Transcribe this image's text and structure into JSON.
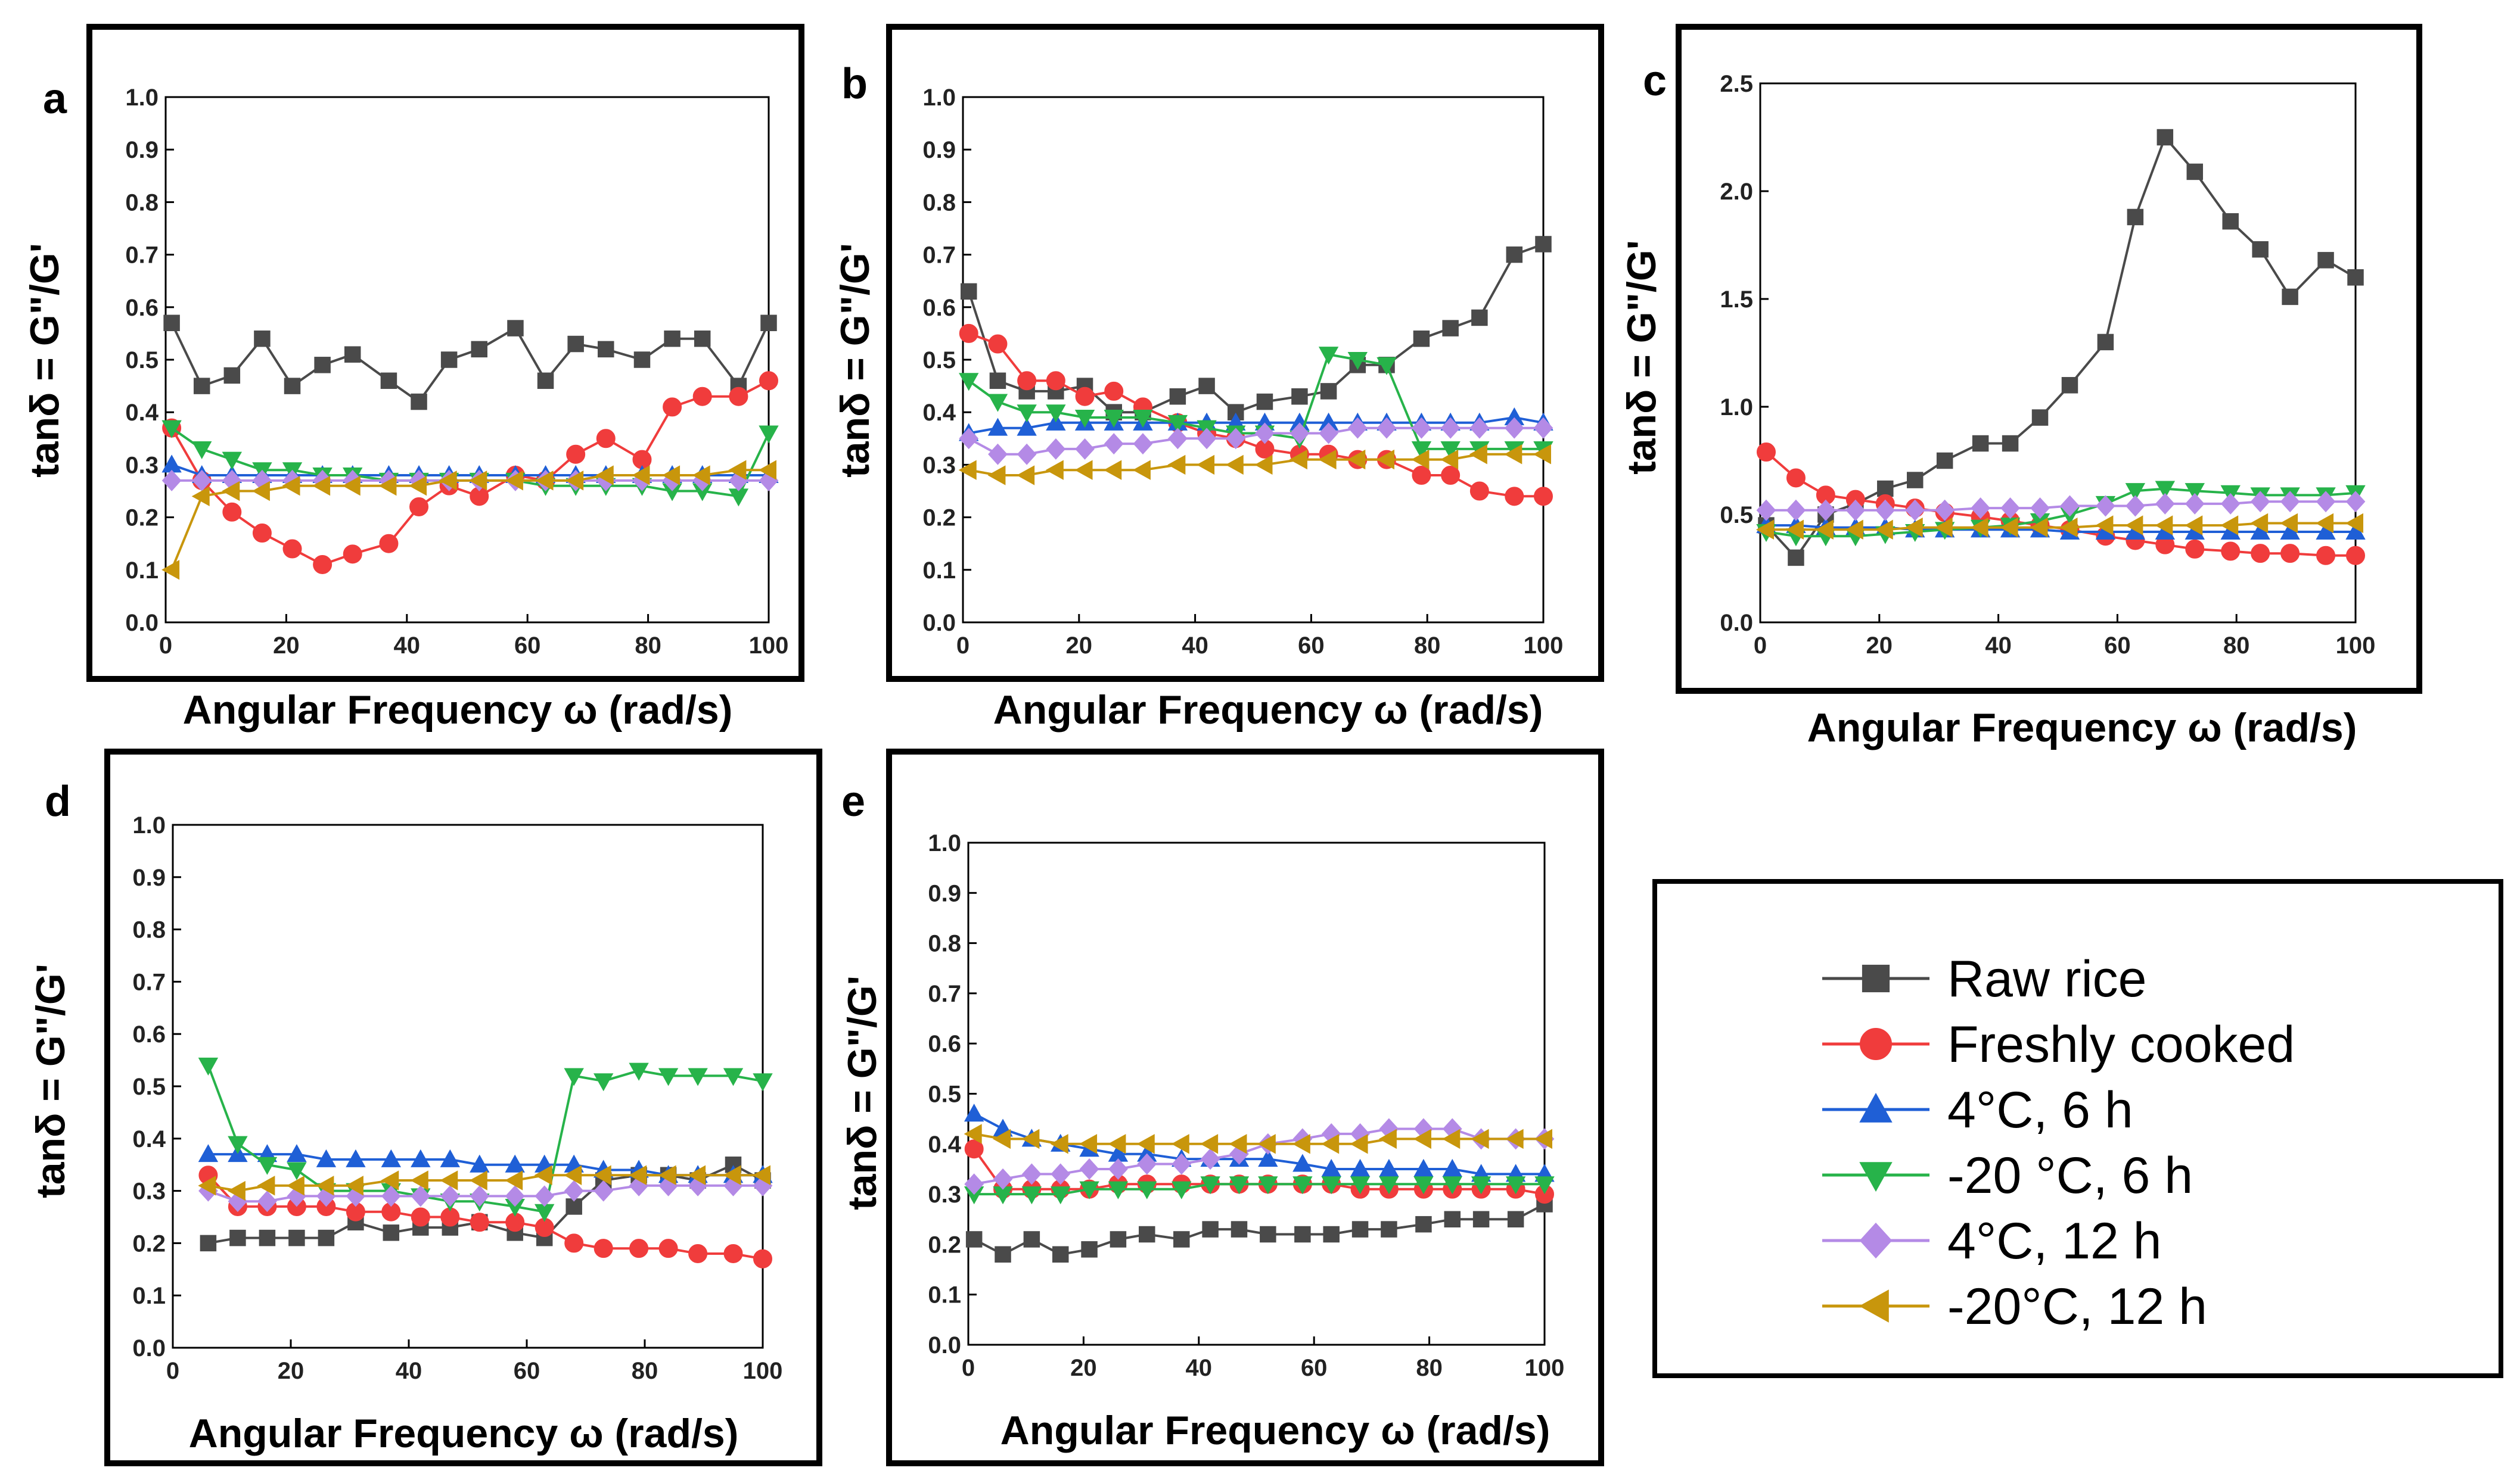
{
  "figure": {
    "legend": [
      {
        "name": "Raw rice",
        "color": "#4a4a4a",
        "marker": "square"
      },
      {
        "name": "Freshly cooked",
        "color": "#f03c3c",
        "marker": "circle"
      },
      {
        "name": "4°C, 6 h",
        "color": "#1f5fd6",
        "marker": "triangle-up"
      },
      {
        "name": "-20 °C, 6 h",
        "color": "#27b34a",
        "marker": "triangle-down"
      },
      {
        "name": "4°C, 12 h",
        "color": "#b48ae6",
        "marker": "diamond"
      },
      {
        "name": "-20°C, 12 h",
        "color": "#c8960c",
        "marker": "triangle-left"
      }
    ]
  },
  "chart_data": [
    {
      "panel": "a",
      "type": "line",
      "xlabel": "Angular Frequency ω (rad/s)",
      "ylabel": "tanδ = G\"/G'",
      "xlim": [
        0,
        100
      ],
      "ylim": [
        0,
        1.0
      ],
      "xticks": [
        0,
        20,
        40,
        60,
        80,
        100
      ],
      "yticks": [
        0.0,
        0.1,
        0.2,
        0.3,
        0.4,
        0.5,
        0.6,
        0.7,
        0.8,
        0.9,
        1.0
      ],
      "ytick_labels": [
        "0.0",
        "0.1",
        "0.2",
        "0.3",
        "0.4",
        "0.5",
        "0.6",
        "0.7",
        "0.8",
        "0.9",
        "1.0"
      ],
      "x": [
        1,
        6,
        11,
        16,
        21,
        26,
        31,
        37,
        42,
        47,
        52,
        58,
        63,
        68,
        73,
        79,
        84,
        89,
        95,
        100
      ],
      "series": [
        {
          "name": "Raw rice",
          "values": [
            0.57,
            0.45,
            0.47,
            0.54,
            0.45,
            0.49,
            0.51,
            0.46,
            0.42,
            0.5,
            0.52,
            0.56,
            0.46,
            0.53,
            0.52,
            0.5,
            0.54,
            0.54,
            0.45,
            0.57
          ]
        },
        {
          "name": "Freshly cooked",
          "values": [
            0.37,
            0.27,
            0.21,
            0.17,
            0.14,
            0.11,
            0.13,
            0.15,
            0.22,
            0.26,
            0.24,
            0.28,
            0.27,
            0.32,
            0.35,
            0.31,
            0.41,
            0.43,
            0.43,
            0.46
          ]
        },
        {
          "name": "4°C, 6 h",
          "values": [
            0.3,
            0.28,
            0.28,
            0.28,
            0.28,
            0.28,
            0.28,
            0.28,
            0.28,
            0.28,
            0.28,
            0.28,
            0.28,
            0.28,
            0.28,
            0.28,
            0.28,
            0.28,
            0.28,
            0.28
          ]
        },
        {
          "name": "-20 °C, 6 h",
          "values": [
            0.37,
            0.33,
            0.31,
            0.29,
            0.29,
            0.28,
            0.28,
            0.27,
            0.27,
            0.27,
            0.27,
            0.27,
            0.26,
            0.26,
            0.26,
            0.26,
            0.25,
            0.25,
            0.24,
            0.36
          ]
        },
        {
          "name": "4°C, 12 h",
          "values": [
            0.27,
            0.27,
            0.27,
            0.27,
            0.27,
            0.27,
            0.27,
            0.27,
            0.27,
            0.27,
            0.27,
            0.27,
            0.27,
            0.27,
            0.27,
            0.27,
            0.27,
            0.27,
            0.27,
            0.27
          ]
        },
        {
          "name": "-20°C, 12 h",
          "values": [
            0.1,
            0.24,
            0.25,
            0.25,
            0.26,
            0.26,
            0.26,
            0.26,
            0.26,
            0.27,
            0.27,
            0.27,
            0.27,
            0.27,
            0.28,
            0.28,
            0.28,
            0.28,
            0.29,
            0.29
          ]
        }
      ]
    },
    {
      "panel": "b",
      "type": "line",
      "xlabel": "Angular Frequency ω (rad/s)",
      "ylabel": "tanδ = G\"/G'",
      "xlim": [
        0,
        100
      ],
      "ylim": [
        0,
        1.0
      ],
      "xticks": [
        0,
        20,
        40,
        60,
        80,
        100
      ],
      "yticks": [
        0.0,
        0.1,
        0.2,
        0.3,
        0.4,
        0.5,
        0.6,
        0.7,
        0.8,
        0.9,
        1.0
      ],
      "ytick_labels": [
        "0.0",
        "0.1",
        "0.2",
        "0.3",
        "0.4",
        "0.5",
        "0.6",
        "0.7",
        "0.8",
        "0.9",
        "1.0"
      ],
      "x": [
        1,
        6,
        11,
        16,
        21,
        26,
        31,
        37,
        42,
        47,
        52,
        58,
        63,
        68,
        73,
        79,
        84,
        89,
        95,
        100
      ],
      "series": [
        {
          "name": "Raw rice",
          "values": [
            0.63,
            0.46,
            0.44,
            0.44,
            0.45,
            0.4,
            0.4,
            0.43,
            0.45,
            0.4,
            0.42,
            0.43,
            0.44,
            0.49,
            0.49,
            0.54,
            0.56,
            0.58,
            0.7,
            0.72
          ]
        },
        {
          "name": "Freshly cooked",
          "values": [
            0.55,
            0.53,
            0.46,
            0.46,
            0.43,
            0.44,
            0.41,
            0.38,
            0.36,
            0.35,
            0.33,
            0.32,
            0.32,
            0.31,
            0.31,
            0.28,
            0.28,
            0.25,
            0.24,
            0.24
          ]
        },
        {
          "name": "4°C, 6 h",
          "values": [
            0.36,
            0.37,
            0.37,
            0.38,
            0.38,
            0.38,
            0.38,
            0.38,
            0.38,
            0.38,
            0.38,
            0.38,
            0.38,
            0.38,
            0.38,
            0.38,
            0.38,
            0.38,
            0.39,
            0.38
          ]
        },
        {
          "name": "-20 °C, 6 h",
          "values": [
            0.46,
            0.42,
            0.4,
            0.4,
            0.39,
            0.39,
            0.39,
            0.38,
            0.37,
            0.36,
            0.36,
            0.35,
            0.51,
            0.5,
            0.49,
            0.33,
            0.33,
            0.33,
            0.33,
            0.33
          ]
        },
        {
          "name": "4°C, 12 h",
          "values": [
            0.35,
            0.32,
            0.32,
            0.33,
            0.33,
            0.34,
            0.34,
            0.35,
            0.35,
            0.35,
            0.36,
            0.36,
            0.36,
            0.37,
            0.37,
            0.37,
            0.37,
            0.37,
            0.37,
            0.37
          ]
        },
        {
          "name": "-20°C, 12 h",
          "values": [
            0.29,
            0.28,
            0.28,
            0.29,
            0.29,
            0.29,
            0.29,
            0.3,
            0.3,
            0.3,
            0.3,
            0.31,
            0.31,
            0.31,
            0.31,
            0.31,
            0.31,
            0.32,
            0.32,
            0.32
          ]
        }
      ]
    },
    {
      "panel": "c",
      "type": "line",
      "xlabel": "Angular Frequency ω (rad/s)",
      "ylabel": "tanδ = G\"/G'",
      "xlim": [
        0,
        100
      ],
      "ylim": [
        0,
        2.5
      ],
      "xticks": [
        0,
        20,
        40,
        60,
        80,
        100
      ],
      "yticks": [
        0.0,
        0.5,
        1.0,
        1.5,
        2.0,
        2.5
      ],
      "ytick_labels": [
        "0.0",
        "0.5",
        "1.0",
        "1.5",
        "2.0",
        "2.5"
      ],
      "x": [
        1,
        6,
        11,
        16,
        21,
        26,
        31,
        37,
        42,
        47,
        52,
        58,
        63,
        68,
        73,
        79,
        84,
        89,
        95,
        100
      ],
      "series": [
        {
          "name": "Raw rice",
          "values": [
            0.45,
            0.3,
            0.5,
            0.55,
            0.62,
            0.66,
            0.75,
            0.83,
            0.83,
            0.95,
            1.1,
            1.3,
            1.88,
            2.25,
            2.09,
            1.86,
            1.73,
            1.51,
            1.68,
            1.6
          ]
        },
        {
          "name": "Freshly cooked",
          "values": [
            0.79,
            0.67,
            0.59,
            0.57,
            0.55,
            0.53,
            0.51,
            0.49,
            0.47,
            0.45,
            0.43,
            0.4,
            0.38,
            0.36,
            0.34,
            0.33,
            0.32,
            0.32,
            0.31,
            0.31
          ]
        },
        {
          "name": "4°C, 6 h",
          "values": [
            0.45,
            0.45,
            0.44,
            0.44,
            0.44,
            0.43,
            0.43,
            0.43,
            0.43,
            0.43,
            0.42,
            0.42,
            0.42,
            0.42,
            0.42,
            0.42,
            0.42,
            0.42,
            0.42,
            0.42
          ]
        },
        {
          "name": "-20 °C, 6 h",
          "values": [
            0.42,
            0.4,
            0.4,
            0.4,
            0.41,
            0.42,
            0.43,
            0.44,
            0.45,
            0.47,
            0.5,
            0.55,
            0.61,
            0.62,
            0.61,
            0.6,
            0.59,
            0.59,
            0.59,
            0.6
          ]
        },
        {
          "name": "4°C, 12 h",
          "values": [
            0.52,
            0.52,
            0.52,
            0.52,
            0.52,
            0.52,
            0.52,
            0.53,
            0.53,
            0.53,
            0.54,
            0.54,
            0.54,
            0.55,
            0.55,
            0.55,
            0.56,
            0.56,
            0.56,
            0.56
          ]
        },
        {
          "name": "-20°C, 12 h",
          "values": [
            0.43,
            0.43,
            0.43,
            0.43,
            0.43,
            0.44,
            0.44,
            0.44,
            0.44,
            0.44,
            0.44,
            0.45,
            0.45,
            0.45,
            0.45,
            0.45,
            0.46,
            0.46,
            0.46,
            0.46
          ]
        }
      ]
    },
    {
      "panel": "d",
      "type": "line",
      "xlabel": "Angular Frequency ω (rad/s)",
      "ylabel": "tanδ = G\"/G'",
      "xlim": [
        0,
        100
      ],
      "ylim": [
        0,
        1.0
      ],
      "xticks": [
        0,
        20,
        40,
        60,
        80,
        100
      ],
      "yticks": [
        0.0,
        0.1,
        0.2,
        0.3,
        0.4,
        0.5,
        0.6,
        0.7,
        0.8,
        0.9,
        1.0
      ],
      "ytick_labels": [
        "0.0",
        "0.1",
        "0.2",
        "0.3",
        "0.4",
        "0.5",
        "0.6",
        "0.7",
        "0.8",
        "0.9",
        "1.0"
      ],
      "x": [
        6,
        11,
        16,
        21,
        26,
        31,
        37,
        42,
        47,
        52,
        58,
        63,
        68,
        73,
        79,
        84,
        89,
        95,
        100
      ],
      "series": [
        {
          "name": "Raw rice",
          "values": [
            0.2,
            0.21,
            0.21,
            0.21,
            0.21,
            0.24,
            0.22,
            0.23,
            0.23,
            0.24,
            0.22,
            0.21,
            0.27,
            0.32,
            0.33,
            0.33,
            0.32,
            0.35,
            0.32
          ]
        },
        {
          "name": "Freshly cooked",
          "values": [
            0.33,
            0.27,
            0.27,
            0.27,
            0.27,
            0.26,
            0.26,
            0.25,
            0.25,
            0.24,
            0.24,
            0.23,
            0.2,
            0.19,
            0.19,
            0.19,
            0.18,
            0.18,
            0.17
          ]
        },
        {
          "name": "4°C, 6 h",
          "values": [
            0.37,
            0.37,
            0.37,
            0.37,
            0.36,
            0.36,
            0.36,
            0.36,
            0.36,
            0.35,
            0.35,
            0.35,
            0.35,
            0.34,
            0.34,
            0.33,
            0.33,
            0.33,
            0.33
          ]
        },
        {
          "name": "-20 °C, 6 h",
          "values": [
            0.54,
            0.39,
            0.35,
            0.34,
            0.3,
            0.3,
            0.3,
            0.29,
            0.28,
            0.28,
            0.27,
            0.26,
            0.52,
            0.51,
            0.53,
            0.52,
            0.52,
            0.52,
            0.51
          ]
        },
        {
          "name": "4°C, 12 h",
          "values": [
            0.3,
            0.28,
            0.28,
            0.29,
            0.29,
            0.29,
            0.29,
            0.29,
            0.29,
            0.29,
            0.29,
            0.29,
            0.3,
            0.3,
            0.31,
            0.31,
            0.31,
            0.31,
            0.31
          ]
        },
        {
          "name": "-20°C, 12 h",
          "values": [
            0.31,
            0.3,
            0.31,
            0.31,
            0.31,
            0.31,
            0.32,
            0.32,
            0.32,
            0.32,
            0.32,
            0.33,
            0.33,
            0.33,
            0.33,
            0.33,
            0.33,
            0.33,
            0.33
          ]
        }
      ]
    },
    {
      "panel": "e",
      "type": "line",
      "xlabel": "Angular Frequency ω (rad/s)",
      "ylabel": "tanδ = G\"/G'",
      "xlim": [
        0,
        100
      ],
      "ylim": [
        0,
        1.0
      ],
      "xticks": [
        0,
        20,
        40,
        60,
        80,
        100
      ],
      "yticks": [
        0.0,
        0.1,
        0.2,
        0.3,
        0.4,
        0.5,
        0.6,
        0.7,
        0.8,
        0.9,
        1.0
      ],
      "ytick_labels": [
        "0.0",
        "0.1",
        "0.2",
        "0.3",
        "0.4",
        "0.5",
        "0.6",
        "0.7",
        "0.8",
        "0.9",
        "1.0"
      ],
      "x": [
        1,
        6,
        11,
        16,
        21,
        26,
        31,
        37,
        42,
        47,
        52,
        58,
        63,
        68,
        73,
        79,
        84,
        89,
        95,
        100
      ],
      "series": [
        {
          "name": "Raw rice",
          "values": [
            0.21,
            0.18,
            0.21,
            0.18,
            0.19,
            0.21,
            0.22,
            0.21,
            0.23,
            0.23,
            0.22,
            0.22,
            0.22,
            0.23,
            0.23,
            0.24,
            0.25,
            0.25,
            0.25,
            0.28
          ]
        },
        {
          "name": "Freshly cooked",
          "values": [
            0.39,
            0.31,
            0.31,
            0.31,
            0.31,
            0.32,
            0.32,
            0.32,
            0.32,
            0.32,
            0.32,
            0.32,
            0.32,
            0.31,
            0.31,
            0.31,
            0.31,
            0.31,
            0.31,
            0.3
          ]
        },
        {
          "name": "4°C, 6 h",
          "values": [
            0.46,
            0.43,
            0.41,
            0.4,
            0.39,
            0.38,
            0.38,
            0.37,
            0.37,
            0.37,
            0.37,
            0.36,
            0.35,
            0.35,
            0.35,
            0.35,
            0.35,
            0.34,
            0.34,
            0.34
          ]
        },
        {
          "name": "-20 °C, 6 h",
          "values": [
            0.3,
            0.3,
            0.3,
            0.3,
            0.31,
            0.31,
            0.31,
            0.31,
            0.32,
            0.32,
            0.32,
            0.32,
            0.32,
            0.32,
            0.32,
            0.32,
            0.32,
            0.32,
            0.32,
            0.32
          ]
        },
        {
          "name": "4°C, 12 h",
          "values": [
            0.32,
            0.33,
            0.34,
            0.34,
            0.35,
            0.35,
            0.36,
            0.36,
            0.37,
            0.38,
            0.4,
            0.41,
            0.42,
            0.42,
            0.43,
            0.43,
            0.43,
            0.41,
            0.41,
            0.41
          ]
        },
        {
          "name": "-20°C, 12 h",
          "values": [
            0.42,
            0.41,
            0.41,
            0.4,
            0.4,
            0.4,
            0.4,
            0.4,
            0.4,
            0.4,
            0.4,
            0.4,
            0.4,
            0.4,
            0.41,
            0.41,
            0.41,
            0.41,
            0.41,
            0.41
          ]
        }
      ]
    }
  ]
}
